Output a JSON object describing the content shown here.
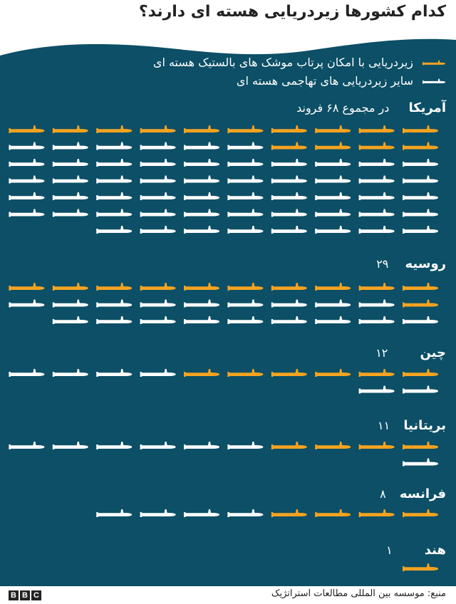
{
  "title": "کدام کشورها زیردریایی هسته ای دارند؟",
  "legend": [
    {
      "label": "زیردریایی با امکان پرتاب موشک های بالستیک هسته ای",
      "color": "#f5a320",
      "icon": "submarine-icon"
    },
    {
      "label": "سایر زیردریایی های تهاجمی هسته ای",
      "color": "#ffffff",
      "icon": "submarine-icon"
    }
  ],
  "colors": {
    "background": "#0c4f66",
    "ballistic": "#f5a320",
    "other": "#ffffff"
  },
  "footer": {
    "source": "منبع: موسسه بین المللی مطالعات استراتژیک",
    "logo": "BBC"
  },
  "chart_data": {
    "type": "bar",
    "title": "کدام کشورها زیردریایی هسته ای دارند؟",
    "categories": [
      "آمریکا",
      "روسیه",
      "چین",
      "بریتانیا",
      "فرانسه",
      "هند"
    ],
    "count_labels": [
      "در مجموع ۶۸ فروند",
      "۲۹",
      "۱۲",
      "۱۱",
      "۸",
      "۱"
    ],
    "totals": [
      68,
      29,
      12,
      11,
      8,
      1
    ],
    "series": [
      {
        "name": "زیردریایی با امکان پرتاب موشک های بالستیک هسته ای",
        "values": [
          14,
          11,
          6,
          4,
          4,
          1
        ]
      },
      {
        "name": "سایر زیردریایی های تهاجمی هسته ای",
        "values": [
          54,
          18,
          6,
          7,
          4,
          0
        ]
      }
    ],
    "per_row": 10,
    "legend_position": "top-right"
  }
}
